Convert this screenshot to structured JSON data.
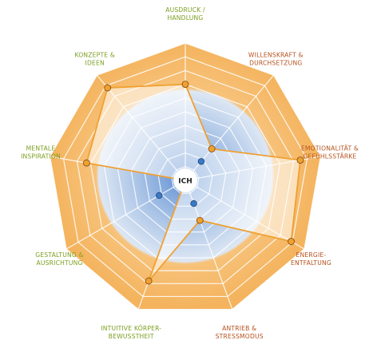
{
  "chart_data": {
    "type": "radar",
    "max": 10,
    "rings": 10,
    "center_label": "ICH",
    "axes": [
      {
        "lines": [
          "AUSDRUCK /",
          "HANDLUNG"
        ],
        "group": "green"
      },
      {
        "lines": [
          "WILLENSKRAFT &",
          "DURCHSETZUNG"
        ],
        "group": "red"
      },
      {
        "lines": [
          "EMOTIONALITÄT &",
          "GEFÜHLSSTÄRKE"
        ],
        "group": "red"
      },
      {
        "lines": [
          "ENERGIE-",
          "ENTFALTUNG"
        ],
        "group": "red"
      },
      {
        "lines": [
          "ANTRIEB &",
          "STRESSMODUS"
        ],
        "group": "red"
      },
      {
        "lines": [
          "INTUITIVE KÖRPER-",
          "BEWUSSTHEIT"
        ],
        "group": "green"
      },
      {
        "lines": [
          "GESTALTUNG &",
          "AUSRICHTUNG"
        ],
        "group": "green"
      },
      {
        "lines": [
          "MENTALE",
          "INSPIRATION"
        ],
        "group": "green"
      },
      {
        "lines": [
          "KONZEPTE &",
          "IDEEN"
        ],
        "group": "green"
      }
    ],
    "series": [
      {
        "values": [
          7.0,
          3.0,
          8.5,
          8.9,
          3.1,
          7.8,
          0,
          7.3,
          8.8
        ],
        "color": "#f0a030"
      },
      {
        "values": [
          0,
          1.8,
          0,
          0,
          1.8,
          0,
          2.2,
          0,
          0
        ],
        "color": "#3a78c8"
      }
    ]
  },
  "colors": {
    "ring_outer": "#f5b867",
    "ring_inner": "#c9d9ee",
    "center_blue": "#6f9ad6",
    "grid": "#ffffff",
    "line_orange": "#f0a030",
    "marker_blue": "#4f82c4",
    "label_green": "#7a9e1e",
    "label_red": "#b5511c"
  }
}
